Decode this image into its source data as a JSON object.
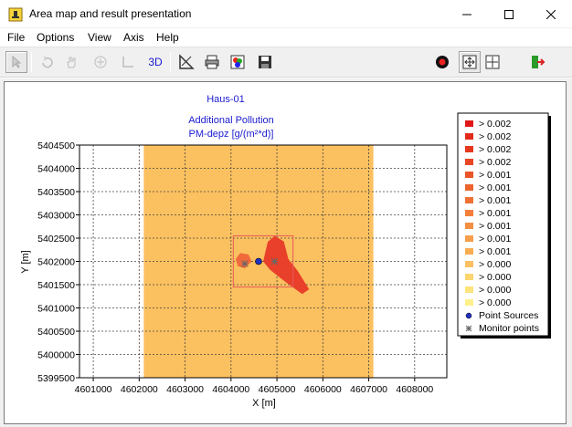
{
  "window": {
    "title": "Area map and result presentation"
  },
  "menu": [
    "File",
    "Options",
    "View",
    "Axis",
    "Help"
  ],
  "toolbar": {
    "label_3d": "3D"
  },
  "colors": {
    "area": "#fbc05f",
    "plume_dark": "#e8402a",
    "plume_light": "#f06a3c",
    "source": "#1f2fbf",
    "title_text": "#1a1ad0",
    "box": "#e85a5a"
  },
  "chart_data": {
    "type": "heatmap",
    "title": "Haus-01",
    "subtitle_lines": [
      "Additional Pollution",
      "PM-depz [g/(m²*d)]"
    ],
    "xlabel": "X [m]",
    "ylabel": "Y [m]",
    "xlim": [
      4600700,
      4608700
    ],
    "ylim": [
      5399500,
      5404500
    ],
    "x_ticks": [
      "4601000",
      "4602000",
      "4603000",
      "4604000",
      "4605000",
      "4606000",
      "4607000",
      "4608000"
    ],
    "y_ticks": [
      "5404500",
      "5404000",
      "5403500",
      "5403000",
      "5402500",
      "5402000",
      "5401500",
      "5401000",
      "5400500",
      "5400000",
      "5399500"
    ],
    "grid": true,
    "legend_position": "right",
    "calculation_area": {
      "x": [
        4602100,
        4607100
      ],
      "y": [
        5399500,
        5404500
      ]
    },
    "inner_box": {
      "x": [
        4604050,
        4605350
      ],
      "y": [
        5401450,
        5402550
      ]
    },
    "plume_left": [
      [
        4604100,
        5402050
      ],
      [
        4604200,
        5402180
      ],
      [
        4604380,
        5402150
      ],
      [
        4604450,
        5402000
      ],
      [
        4604300,
        5401850
      ],
      [
        4604150,
        5401900
      ]
    ],
    "plume_right": [
      [
        4604700,
        5402000
      ],
      [
        4604800,
        5402420
      ],
      [
        4604950,
        5402550
      ],
      [
        4605150,
        5402430
      ],
      [
        4605250,
        5402050
      ],
      [
        4605450,
        5401800
      ],
      [
        4605700,
        5401400
      ],
      [
        4605550,
        5401300
      ],
      [
        4605200,
        5401550
      ],
      [
        4605000,
        5401700
      ],
      [
        4604850,
        5401820
      ]
    ],
    "point_sources": [
      {
        "x": 4604600,
        "y": 5402000
      }
    ],
    "monitor_points": [
      {
        "x": 4604300,
        "y": 5401950
      },
      {
        "x": 4604950,
        "y": 5402000
      }
    ],
    "legend": [
      {
        "label": "> 0.002",
        "color": "#e11818"
      },
      {
        "label": "> 0.002",
        "color": "#e32a1a"
      },
      {
        "label": "> 0.002",
        "color": "#e5381e"
      },
      {
        "label": "> 0.002",
        "color": "#e84624"
      },
      {
        "label": "> 0.001",
        "color": "#ea5428"
      },
      {
        "label": "> 0.001",
        "color": "#ed632e"
      },
      {
        "label": "> 0.001",
        "color": "#ef7134"
      },
      {
        "label": "> 0.001",
        "color": "#f2803a"
      },
      {
        "label": "> 0.001",
        "color": "#f48f42"
      },
      {
        "label": "> 0.001",
        "color": "#f69e4a"
      },
      {
        "label": "> 0.001",
        "color": "#f8ad52"
      },
      {
        "label": "> 0.000",
        "color": "#fbc05f"
      },
      {
        "label": "> 0.000",
        "color": "#fcd56e"
      },
      {
        "label": "> 0.000",
        "color": "#fde47c"
      },
      {
        "label": "> 0.000",
        "color": "#fff08a"
      }
    ],
    "legend_point_sources": "Point Sources",
    "legend_monitor_points": "Monitor points"
  }
}
